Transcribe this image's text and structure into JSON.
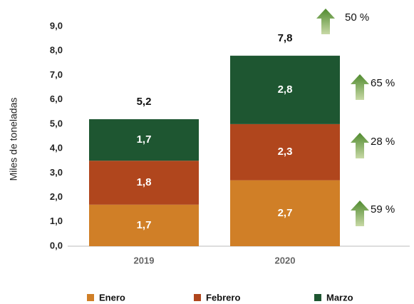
{
  "chart_data": {
    "type": "stacked_bar",
    "ylabel": "Miles de toneladas",
    "categories": [
      "2019",
      "2020"
    ],
    "series": [
      {
        "name": "Enero",
        "color": "#d07f27",
        "values": [
          1.7,
          2.7
        ],
        "value_labels": [
          "1,7",
          "2,7"
        ]
      },
      {
        "name": "Febrero",
        "color": "#b0461d",
        "values": [
          1.8,
          2.3
        ],
        "value_labels": [
          "1,8",
          "2,3"
        ]
      },
      {
        "name": "Marzo",
        "color": "#1e5631",
        "values": [
          1.7,
          2.8
        ],
        "value_labels": [
          "1,7",
          "2,8"
        ]
      }
    ],
    "totals": [
      5.2,
      7.8
    ],
    "total_labels": [
      "5,2",
      "7,8"
    ],
    "annotations": [
      "59 %",
      "28 %",
      "65 %",
      "50 %"
    ],
    "ylim": [
      0,
      9
    ],
    "yticks": [
      {
        "value": 0,
        "label": "0,0"
      },
      {
        "value": 1,
        "label": "1,0"
      },
      {
        "value": 2,
        "label": "2,0"
      },
      {
        "value": 3,
        "label": "3,0"
      },
      {
        "value": 4,
        "label": "4,0"
      },
      {
        "value": 5,
        "label": "5,0"
      },
      {
        "value": 6,
        "label": "6,0"
      },
      {
        "value": 7,
        "label": "7,0"
      },
      {
        "value": 8,
        "label": "8,0"
      },
      {
        "value": 9,
        "label": "9,0"
      }
    ],
    "legend": "bottom"
  }
}
